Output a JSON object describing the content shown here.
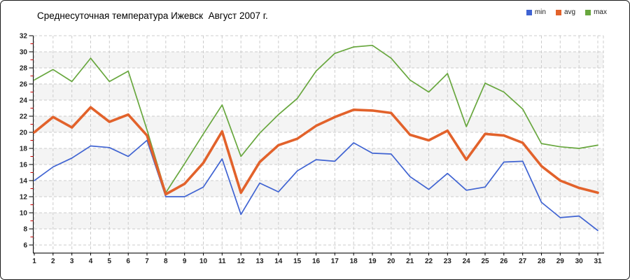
{
  "title": "Среднесуточная температура Ижевск  Август 2007 г.",
  "legend": [
    {
      "label": "min",
      "color": "#3f63d2"
    },
    {
      "label": "avg",
      "color": "#e2622b"
    },
    {
      "label": "max",
      "color": "#68a73e"
    }
  ],
  "colors": {
    "grid": "#cccccc",
    "band": "#f4f4f4",
    "axis": "#000000",
    "minor_tick": "#cc0000",
    "tick_label": "#222222"
  },
  "chart_data": {
    "type": "line",
    "title": "Среднесуточная температура Ижевск  Август 2007 г.",
    "x": [
      1,
      2,
      3,
      4,
      5,
      6,
      7,
      8,
      9,
      10,
      11,
      12,
      13,
      14,
      15,
      16,
      17,
      18,
      19,
      20,
      21,
      22,
      23,
      24,
      25,
      26,
      27,
      28,
      29,
      30,
      31
    ],
    "series": [
      {
        "name": "min",
        "color": "#3f63d2",
        "width": 1.7,
        "values": [
          14.0,
          15.7,
          16.8,
          18.3,
          18.1,
          17.0,
          19.0,
          12.0,
          12.0,
          13.2,
          16.7,
          9.8,
          13.7,
          12.6,
          15.2,
          16.6,
          16.4,
          18.7,
          17.4,
          17.3,
          14.5,
          12.9,
          14.9,
          12.8,
          13.2,
          16.3,
          16.4,
          11.3,
          9.4,
          9.6,
          7.8
        ]
      },
      {
        "name": "avg",
        "color": "#e2622b",
        "width": 3.6,
        "values": [
          20.0,
          21.9,
          20.6,
          23.1,
          21.3,
          22.2,
          19.6,
          12.3,
          13.6,
          16.2,
          20.1,
          12.5,
          16.3,
          18.4,
          19.2,
          20.8,
          21.9,
          22.8,
          22.7,
          22.4,
          19.7,
          19.0,
          20.2,
          16.6,
          19.8,
          19.6,
          18.7,
          15.8,
          14.0,
          13.1,
          12.5
        ]
      },
      {
        "name": "max",
        "color": "#68a73e",
        "width": 1.7,
        "values": [
          26.5,
          27.8,
          26.3,
          29.2,
          26.3,
          27.6,
          20.3,
          12.5,
          16.1,
          19.8,
          23.4,
          17.0,
          19.9,
          22.2,
          24.2,
          27.6,
          29.8,
          30.6,
          30.8,
          29.2,
          26.5,
          25.0,
          27.3,
          20.7,
          26.1,
          25.0,
          22.9,
          18.6,
          18.2,
          18.0,
          18.4
        ]
      }
    ],
    "ylim": [
      6,
      32
    ],
    "ytick_step": 2,
    "grid": true,
    "banded_background": true,
    "legend_position": "top-right"
  }
}
